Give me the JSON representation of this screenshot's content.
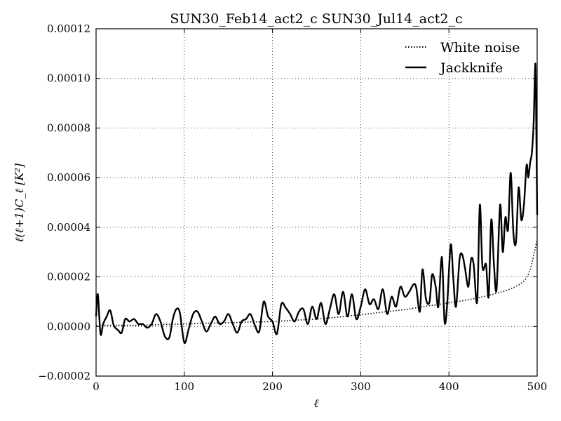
{
  "chart_data": {
    "type": "line",
    "title": "SUN30_Feb14_act2_c SUN30_Jul14_act2_c",
    "xlabel": "ℓ",
    "ylabel": "ℓ(ℓ+1)C_ℓ [K²]",
    "xlim": [
      0,
      500
    ],
    "ylim": [
      -2e-05,
      0.00012
    ],
    "x_ticks": [
      "0",
      "100",
      "200",
      "300",
      "400",
      "500"
    ],
    "y_ticks": [
      "−0.00002",
      "0.00000",
      "0.00002",
      "0.00004",
      "0.00006",
      "0.00008",
      "0.00010",
      "0.00012"
    ],
    "grid": true,
    "legend_position": "top-right",
    "series": [
      {
        "name": "White noise",
        "style": "dotted",
        "color": "#000000",
        "x": [
          0,
          25,
          50,
          75,
          100,
          125,
          150,
          175,
          200,
          225,
          250,
          275,
          300,
          325,
          350,
          375,
          400,
          425,
          450,
          475,
          490,
          500
        ],
        "y": [
          5e-07,
          5e-07,
          5e-07,
          8e-07,
          1e-06,
          1.3e-06,
          1.5e-06,
          1.8e-06,
          2e-06,
          2.5e-06,
          3e-06,
          3.8e-06,
          4.7e-06,
          5.8e-06,
          6.8e-06,
          8.2e-06,
          9.5e-06,
          1.1e-05,
          1.3e-05,
          1.6e-05,
          2.1e-05,
          3.5e-05
        ]
      },
      {
        "name": "Jackknife",
        "style": "solid",
        "color": "#000000",
        "x": [
          0,
          2,
          5,
          8,
          12,
          16,
          20,
          25,
          29,
          33,
          38,
          43,
          48,
          53,
          58,
          63,
          68,
          73,
          78,
          83,
          87,
          91,
          95,
          100,
          105,
          110,
          115,
          120,
          125,
          130,
          135,
          140,
          145,
          150,
          155,
          160,
          165,
          170,
          175,
          180,
          185,
          190,
          195,
          200,
          205,
          210,
          215,
          220,
          225,
          230,
          235,
          240,
          245,
          250,
          255,
          260,
          265,
          270,
          275,
          280,
          285,
          290,
          295,
          300,
          305,
          310,
          315,
          320,
          325,
          330,
          335,
          340,
          345,
          350,
          355,
          360,
          363,
          367,
          370,
          374,
          378,
          381,
          385,
          388,
          392,
          395,
          398,
          402,
          405,
          408,
          412,
          415,
          418,
          422,
          425,
          428,
          432,
          435,
          438,
          442,
          445,
          448,
          451,
          454,
          458,
          461,
          464,
          467,
          470,
          473,
          476,
          479,
          482,
          485,
          488,
          490,
          492,
          494,
          496,
          498,
          499,
          500
        ],
        "y": [
          4e-06,
          1.3e-05,
          -3e-06,
          1e-06,
          4e-06,
          6.5e-06,
          5e-07,
          -1.5e-06,
          -2.5e-06,
          3e-06,
          2e-06,
          3e-06,
          1e-06,
          1e-06,
          -5e-07,
          1e-06,
          5e-06,
          2e-06,
          -4e-06,
          -4.5e-06,
          3e-06,
          7e-06,
          5.5e-06,
          -6.5e-06,
          -1e-06,
          5e-06,
          6e-06,
          2e-06,
          -2e-06,
          1e-06,
          4e-06,
          1e-06,
          2e-06,
          5e-06,
          1e-06,
          -2.5e-06,
          2e-06,
          3e-06,
          5e-06,
          5e-07,
          -2e-06,
          1e-05,
          4e-06,
          2e-06,
          -3e-06,
          9e-06,
          7.5e-06,
          5e-06,
          2e-06,
          6e-06,
          7e-06,
          1e-06,
          8e-06,
          3e-06,
          9.5e-06,
          1e-06,
          7e-06,
          1.3e-05,
          5e-06,
          1.4e-05,
          4e-06,
          1.3e-05,
          3e-06,
          8e-06,
          1.5e-05,
          9e-06,
          1.1e-05,
          7e-06,
          1.5e-05,
          5e-06,
          1.2e-05,
          8e-06,
          1.6e-05,
          1.2e-05,
          1.4e-05,
          1.7e-05,
          1.55e-05,
          6e-06,
          2.3e-05,
          1.1e-05,
          1e-05,
          2.1e-05,
          1.6e-05,
          8e-06,
          2.8e-05,
          2e-06,
          9e-06,
          3.3e-05,
          1.9e-05,
          8e-06,
          2.7e-05,
          2.9e-05,
          2.4e-05,
          1.6e-05,
          2.7e-05,
          2.5e-05,
          1e-05,
          4.9e-05,
          2.4e-05,
          2.5e-05,
          1.2e-05,
          4.3e-05,
          2.5e-05,
          1.5e-05,
          4.9e-05,
          3e-05,
          4.4e-05,
          3.9e-05,
          6.2e-05,
          3.8e-05,
          3.4e-05,
          5.6e-05,
          4.3e-05,
          4.9e-05,
          6.5e-05,
          6e-05,
          6.6e-05,
          7e-05,
          8.2e-05,
          0.000106,
          8e-05,
          4.5e-05
        ]
      }
    ]
  }
}
